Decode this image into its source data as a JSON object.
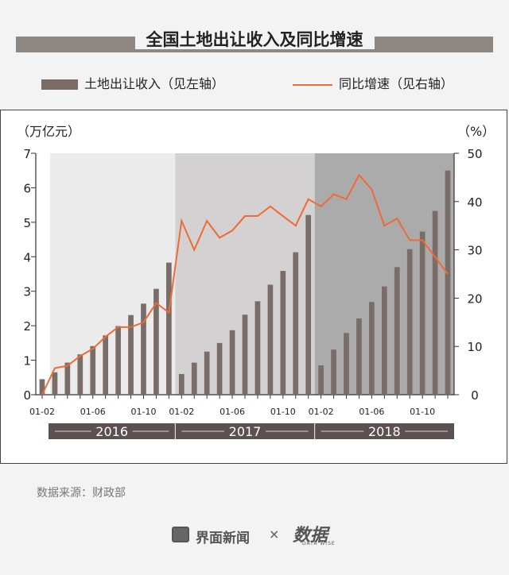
{
  "title": "全国土地出让收入及同比增速",
  "legend": {
    "bar_label": "土地出让收入（见左轴）",
    "line_label": "同比增速（见右轴）"
  },
  "source": "数据来源：财政部",
  "footer": {
    "brand": "界面新闻",
    "times": "×",
    "brand2": "数据",
    "brand2_sub": "DATA WISE"
  },
  "colors": {
    "bar": "#7a6d68",
    "line": "#f06a35",
    "band_2016": "#ebebeb",
    "band_2017": "#d3d1d1",
    "band_2018": "#ababab",
    "year_bar": "#5c5050"
  },
  "chart_data": {
    "type": "bar",
    "left_unit": "（万亿元）",
    "right_unit": "（%）",
    "ylim_left": [
      0,
      7
    ],
    "ylim_right": [
      0,
      50
    ],
    "left_ticks": [
      "0",
      "1",
      "2",
      "3",
      "4",
      "5",
      "6",
      "7"
    ],
    "right_ticks": [
      "0",
      "10",
      "20",
      "30",
      "40",
      "50"
    ],
    "x_tick_labels": [
      {
        "index": 0,
        "label": "01-02"
      },
      {
        "index": 4,
        "label": "01-06"
      },
      {
        "index": 8,
        "label": "01-10"
      },
      {
        "index": 11,
        "label": "01-02"
      },
      {
        "index": 15,
        "label": "01-06"
      },
      {
        "index": 19,
        "label": "01-10"
      },
      {
        "index": 22,
        "label": "01-02"
      },
      {
        "index": 26,
        "label": "01-06"
      },
      {
        "index": 30,
        "label": "01-10"
      }
    ],
    "years": [
      {
        "label": "2016",
        "start": 0,
        "end": 10
      },
      {
        "label": "2017",
        "start": 11,
        "end": 21
      },
      {
        "label": "2018",
        "start": 22,
        "end": 32
      }
    ],
    "series": [
      {
        "name": "土地出让收入（见左轴）",
        "type": "bar",
        "axis": "left",
        "values": [
          0.45,
          0.65,
          0.93,
          1.17,
          1.41,
          1.72,
          1.99,
          2.31,
          2.64,
          3.07,
          3.83,
          0.6,
          0.93,
          1.25,
          1.5,
          1.87,
          2.32,
          2.71,
          3.19,
          3.59,
          4.13,
          5.21,
          0.85,
          1.31,
          1.79,
          2.21,
          2.69,
          3.14,
          3.7,
          4.22,
          4.73,
          5.33,
          6.5
        ]
      },
      {
        "name": "同比增速（见右轴）",
        "type": "line",
        "axis": "right",
        "values": [
          0,
          5.5,
          6,
          8,
          9.5,
          12,
          14,
          14,
          15,
          19,
          17,
          36,
          30,
          36,
          32.5,
          34,
          37,
          37,
          39,
          37,
          35,
          40.5,
          39,
          41.5,
          40.5,
          45.5,
          42.5,
          35,
          36.5,
          32,
          32,
          28.5,
          25
        ]
      }
    ]
  }
}
